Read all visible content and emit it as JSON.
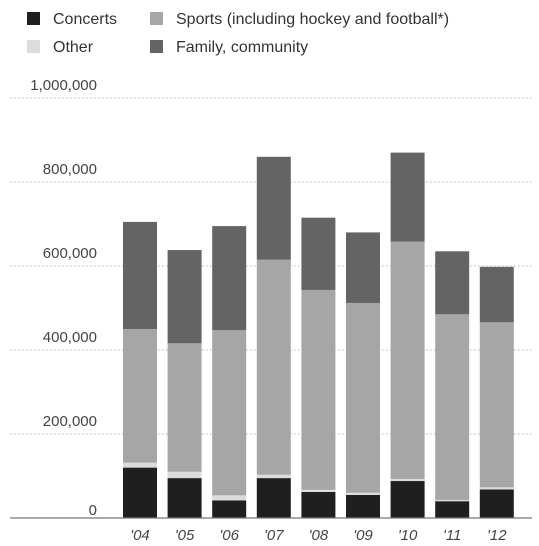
{
  "chart_data": {
    "type": "bar",
    "stacked": true,
    "categories": [
      "'04",
      "'05",
      "'06",
      "'07",
      "'08",
      "'09",
      "'10",
      "'11",
      "'12"
    ],
    "series": [
      {
        "name": "Concerts",
        "color": "#1f1f1f",
        "values": [
          120000,
          95000,
          42000,
          95000,
          62000,
          55000,
          88000,
          40000,
          68000
        ]
      },
      {
        "name": "Other",
        "color": "#dcdcdc",
        "values": [
          12000,
          15000,
          12000,
          8000,
          5000,
          5000,
          5000,
          3000,
          5000
        ]
      },
      {
        "name": "Sports (including hockey and football*)",
        "color": "#a6a6a6",
        "values": [
          318000,
          306000,
          393000,
          512000,
          476000,
          452000,
          565000,
          442000,
          393000
        ]
      },
      {
        "name": "Family, community",
        "color": "#646464",
        "values": [
          255000,
          222000,
          248000,
          245000,
          172000,
          168000,
          212000,
          150000,
          132000
        ]
      }
    ],
    "y_ticks": [
      "0",
      "200,000",
      "400,000",
      "600,000",
      "800,000",
      "1,000,000"
    ],
    "ylim": [
      0,
      1000000
    ],
    "grid": true,
    "grid_style": "dotted",
    "legend_placement": "top",
    "title": "",
    "xlabel": "",
    "ylabel": ""
  }
}
